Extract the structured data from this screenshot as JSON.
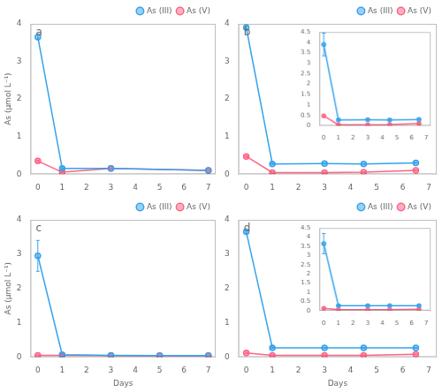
{
  "chart_data": [
    {
      "type": "line",
      "annotations": [
        "a"
      ],
      "ylabel": "As (μmol L⁻¹)",
      "x": [
        0,
        1,
        3,
        7
      ],
      "series": [
        {
          "name": "As (III)",
          "values": [
            3.65,
            0.15,
            0.15,
            0.1
          ],
          "errors": [
            0.07,
            0.02,
            0.0,
            0.01
          ]
        },
        {
          "name": "As (V)",
          "values": [
            0.35,
            0.05,
            0.15,
            0.1
          ],
          "errors": [
            0.02,
            0.01,
            0.02,
            0.01
          ]
        }
      ],
      "xlim": [
        -0.3,
        7.3
      ],
      "xticks": [
        0,
        1,
        2,
        3,
        4,
        5,
        6,
        7
      ],
      "ylim": [
        0,
        4
      ],
      "yticks": [
        0,
        1,
        2,
        3,
        4
      ],
      "grid": false,
      "legend": "upper right"
    },
    {
      "type": "line",
      "annotations": [
        "b"
      ],
      "x": [
        0,
        1,
        3,
        4.5,
        6.5
      ],
      "series": [
        {
          "name": "As (III)",
          "values": [
            3.9,
            0.27,
            0.28,
            0.27,
            0.3
          ],
          "errors": [
            0.04,
            0.01,
            0.01,
            0.01,
            0.01
          ]
        },
        {
          "name": "As (V)",
          "values": [
            0.47,
            0.04,
            0.04,
            0.05,
            0.1
          ],
          "errors": [
            0.02,
            0.01,
            0.01,
            0.01,
            0.01
          ]
        }
      ],
      "xlim": [
        -0.3,
        7.3
      ],
      "xticks": [
        0,
        1,
        2,
        3,
        4,
        5,
        6,
        7
      ],
      "ylim": [
        0,
        4
      ],
      "yticks": [
        0,
        1,
        2,
        3,
        4
      ],
      "grid": false,
      "legend": "upper right",
      "inset": {
        "type": "line",
        "x": [
          0,
          1,
          3,
          4.5,
          6.5
        ],
        "series": [
          {
            "values": [
              3.9,
              0.27,
              0.28,
              0.27,
              0.3
            ],
            "errors": [
              0.55,
              0.01,
              0.01,
              0.01,
              0.01
            ]
          },
          {
            "values": [
              0.47,
              0.04,
              0.04,
              0.05,
              0.1
            ],
            "errors": [
              0.02,
              0.01,
              0.01,
              0.01,
              0.01
            ]
          }
        ],
        "xlim": [
          -0.3,
          7.3
        ],
        "xticks": [
          0,
          1,
          2,
          3,
          4,
          5,
          6,
          7
        ],
        "ylim": [
          0,
          4.5
        ],
        "yticks": [
          0,
          0.5,
          1,
          1.5,
          2,
          2.5,
          3,
          3.5,
          4,
          4.5
        ],
        "grid": false
      }
    },
    {
      "type": "line",
      "annotations": [
        "c"
      ],
      "ylabel": "As (μmol L⁻¹)",
      "xlabel": "Days",
      "x": [
        0,
        1,
        3,
        5,
        7
      ],
      "series": [
        {
          "name": "As (III)",
          "values": [
            2.95,
            0.07,
            0.05,
            0.04,
            0.04
          ],
          "errors": [
            0.45,
            0.02,
            0.0,
            0.0,
            0.0
          ]
        },
        {
          "name": "As (V)",
          "values": [
            0.05,
            0.05,
            0.04,
            0.04,
            0.04
          ],
          "errors": [
            0.01,
            0.01,
            0.0,
            0.0,
            0.0
          ]
        }
      ],
      "xlim": [
        -0.3,
        7.3
      ],
      "xticks": [
        0,
        1,
        2,
        3,
        4,
        5,
        6,
        7
      ],
      "ylim": [
        0,
        4
      ],
      "yticks": [
        0,
        1,
        2,
        3,
        4
      ],
      "grid": false,
      "legend": "upper right"
    },
    {
      "type": "line",
      "annotations": [
        "d"
      ],
      "xlabel": "Days",
      "x": [
        0,
        1,
        3,
        4.5,
        6.5
      ],
      "series": [
        {
          "name": "As (III)",
          "values": [
            3.65,
            0.27,
            0.27,
            0.27,
            0.27
          ],
          "errors": [
            0.04,
            0.02,
            0.01,
            0.01,
            0.01
          ]
        },
        {
          "name": "As (V)",
          "values": [
            0.12,
            0.05,
            0.05,
            0.05,
            0.08
          ],
          "errors": [
            0.02,
            0.01,
            0.01,
            0.01,
            0.01
          ]
        }
      ],
      "xlim": [
        -0.3,
        7.3
      ],
      "xticks": [
        0,
        1,
        2,
        3,
        4,
        5,
        6,
        7
      ],
      "ylim": [
        0,
        4
      ],
      "yticks": [
        0,
        1,
        2,
        3,
        4
      ],
      "grid": false,
      "legend": "upper right",
      "inset": {
        "type": "line",
        "x": [
          0,
          1,
          3,
          4.5,
          6.5
        ],
        "series": [
          {
            "values": [
              3.65,
              0.27,
              0.27,
              0.27,
              0.27
            ],
            "errors": [
              0.55,
              0.02,
              0.01,
              0.01,
              0.01
            ]
          },
          {
            "values": [
              0.12,
              0.05,
              0.05,
              0.05,
              0.08
            ],
            "errors": [
              0.02,
              0.01,
              0.01,
              0.01,
              0.01
            ]
          }
        ],
        "xlim": [
          -0.3,
          7.3
        ],
        "xticks": [
          0,
          1,
          2,
          3,
          4,
          5,
          6,
          7
        ],
        "ylim": [
          0,
          4.5
        ],
        "yticks": [
          0,
          0.5,
          1,
          1.5,
          2,
          2.5,
          3,
          3.5,
          4,
          4.5
        ],
        "grid": false
      }
    }
  ]
}
